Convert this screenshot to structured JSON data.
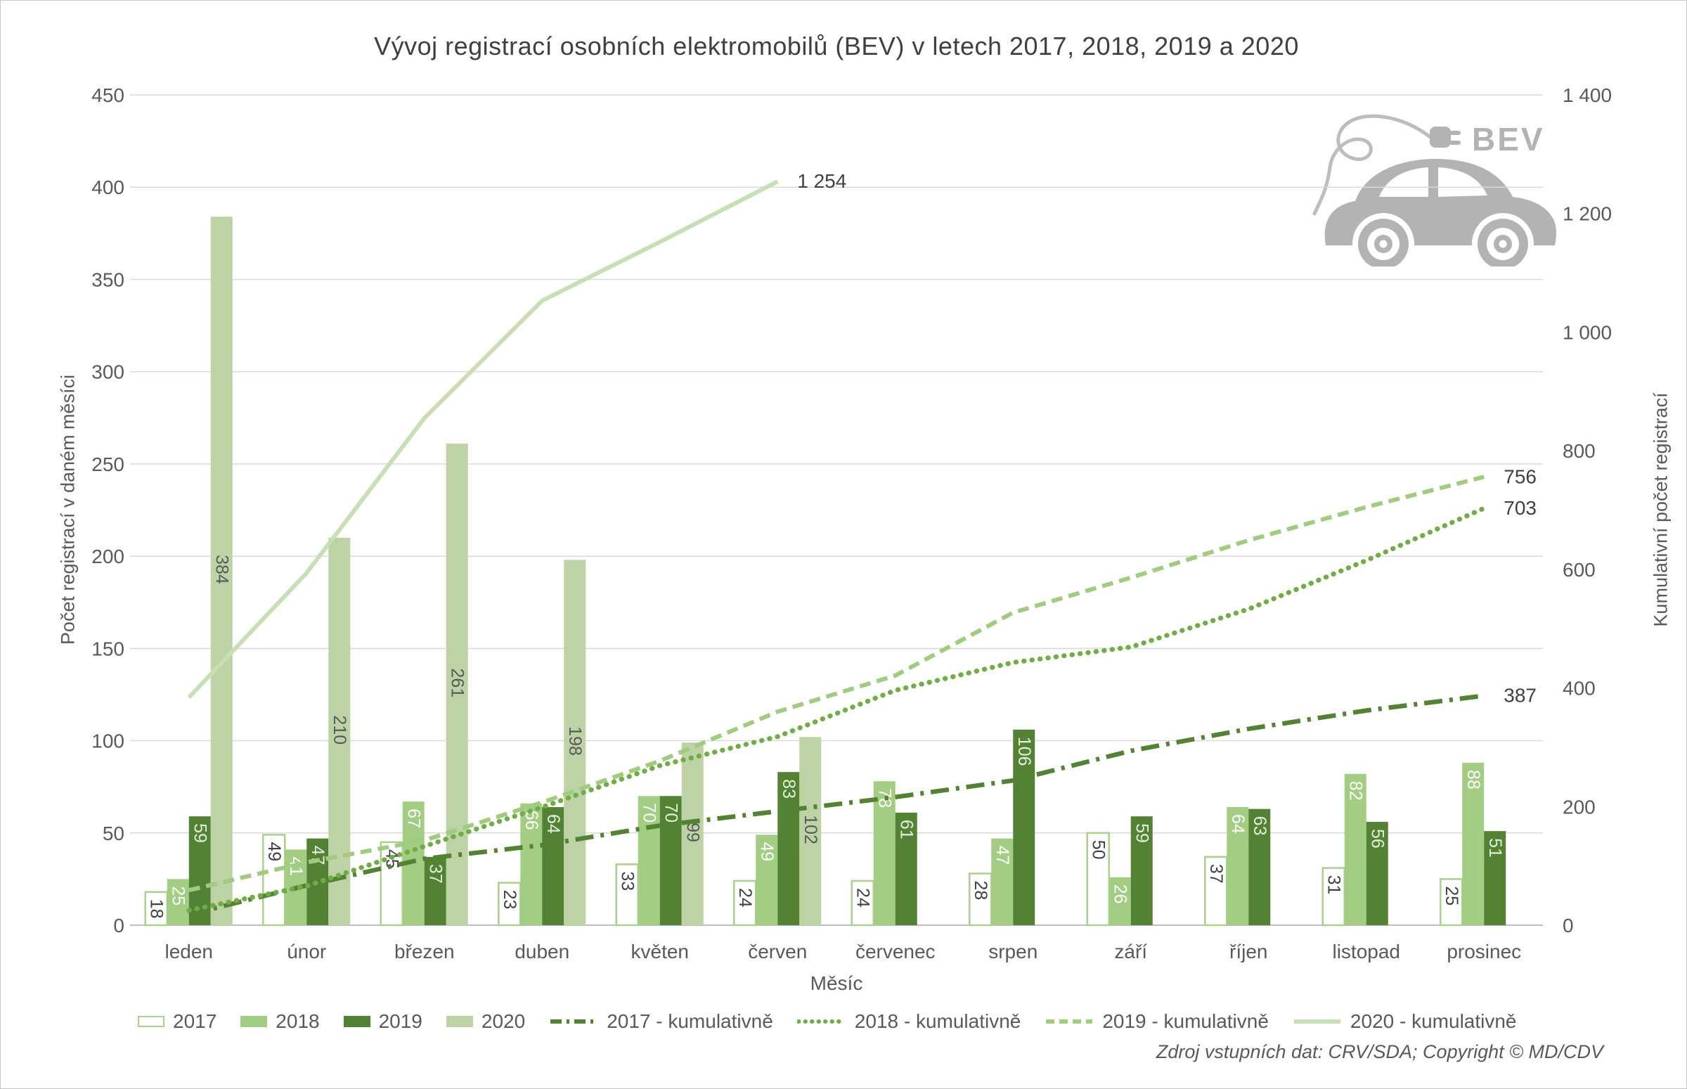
{
  "title": "Vývoj registrací osobních elektromobilů (BEV) v letech 2017, 2018, 2019 a 2020",
  "logo": {
    "label": "BEV"
  },
  "axes": {
    "left": {
      "title": "Počet registrací v daném měsíci"
    },
    "right": {
      "title": "Kumulativní počet registrací"
    },
    "x": {
      "title": "Měsíc"
    }
  },
  "source_note": "Zdroj vstupních dat: CRV/SDA; Copyright © MD/CDV",
  "colors": {
    "gridline": "#d9d9d9",
    "axis_line": "#bfbfbf",
    "tick_text": "#595959",
    "title_text": "#404040",
    "car": "#b3b3b3"
  },
  "legend": {
    "items": [
      {
        "label": "2017",
        "swatch": "bar",
        "fill": "#ffffff",
        "border": "#a9d18e"
      },
      {
        "label": "2018",
        "swatch": "bar",
        "fill": "#a3cd83"
      },
      {
        "label": "2019",
        "swatch": "bar",
        "fill": "#548235"
      },
      {
        "label": "2020",
        "swatch": "bar",
        "fill": "#bdd3a6"
      },
      {
        "label": "2017 - kumulativně",
        "swatch": "line",
        "style": "dashdot",
        "color": "#548235"
      },
      {
        "label": "2018 - kumulativně",
        "swatch": "line",
        "style": "dotted",
        "color": "#70ad47"
      },
      {
        "label": "2019 - kumulativně",
        "swatch": "line",
        "style": "dashed",
        "color": "#a0cb80"
      },
      {
        "label": "2020 - kumulativně",
        "swatch": "line",
        "style": "solid",
        "color": "#c8dfb6"
      }
    ]
  },
  "chart_data": {
    "type": "bar+line",
    "categories": [
      "leden",
      "únor",
      "březen",
      "duben",
      "květen",
      "červen",
      "červenec",
      "srpen",
      "září",
      "říjen",
      "listopad",
      "prosinec"
    ],
    "y_left": {
      "min": 0,
      "max": 450,
      "step": 50,
      "tick_labels": [
        "0",
        "50",
        "100",
        "150",
        "200",
        "250",
        "300",
        "350",
        "400",
        "450"
      ]
    },
    "y_right": {
      "min": 0,
      "max": 1400,
      "step": 200,
      "tick_labels": [
        "0",
        "200",
        "400",
        "600",
        "800",
        "1 000",
        "1 200",
        "1 400"
      ]
    },
    "bar_series": [
      {
        "name": "2017",
        "axis": "left",
        "fill": "#ffffff",
        "stroke": "#a9d18e",
        "label_color": "#404040",
        "label_pos": "inside-end",
        "values": [
          18,
          49,
          45,
          23,
          33,
          24,
          24,
          28,
          50,
          37,
          31,
          25
        ]
      },
      {
        "name": "2018",
        "axis": "left",
        "fill": "#a3cd83",
        "label_color": "#ffffff",
        "label_pos": "inside-end",
        "values": [
          25,
          41,
          67,
          66,
          70,
          49,
          78,
          47,
          26,
          64,
          82,
          88
        ]
      },
      {
        "name": "2019",
        "axis": "left",
        "fill": "#548235",
        "label_color": "#e2efda",
        "label_pos": "inside-end",
        "values": [
          59,
          47,
          37,
          64,
          70,
          83,
          61,
          106,
          59,
          63,
          56,
          51
        ]
      },
      {
        "name": "2020",
        "axis": "left",
        "fill": "#bdd3a6",
        "label_color": "#595959",
        "label_pos": "center",
        "values": [
          384,
          210,
          261,
          198,
          99,
          102,
          null,
          null,
          null,
          null,
          null,
          null
        ]
      }
    ],
    "line_series": [
      {
        "name": "2017 - kumulativně",
        "axis": "right",
        "style": "dashdot",
        "color": "#548235",
        "width": 6.5,
        "values": [
          18,
          67,
          112,
          135,
          168,
          192,
          216,
          244,
          294,
          331,
          362,
          387
        ],
        "end_label": "387"
      },
      {
        "name": "2018 - kumulativně",
        "axis": "right",
        "style": "dotted",
        "color": "#70ad47",
        "width": 7,
        "values": [
          25,
          66,
          133,
          199,
          269,
          318,
          396,
          443,
          469,
          533,
          615,
          703
        ],
        "end_label": "703"
      },
      {
        "name": "2019 - kumulativně",
        "axis": "right",
        "style": "dashed",
        "color": "#a0cb80",
        "width": 6,
        "values": [
          59,
          106,
          143,
          207,
          277,
          360,
          421,
          527,
          586,
          649,
          705,
          756
        ],
        "end_label": "756"
      },
      {
        "name": "2020 - kumulativně",
        "axis": "right",
        "style": "solid",
        "color": "#c8dfb6",
        "width": 6,
        "values": [
          384,
          594,
          855,
          1053,
          1152,
          1254,
          null,
          null,
          null,
          null,
          null,
          null
        ],
        "end_label": "1 254"
      }
    ]
  }
}
